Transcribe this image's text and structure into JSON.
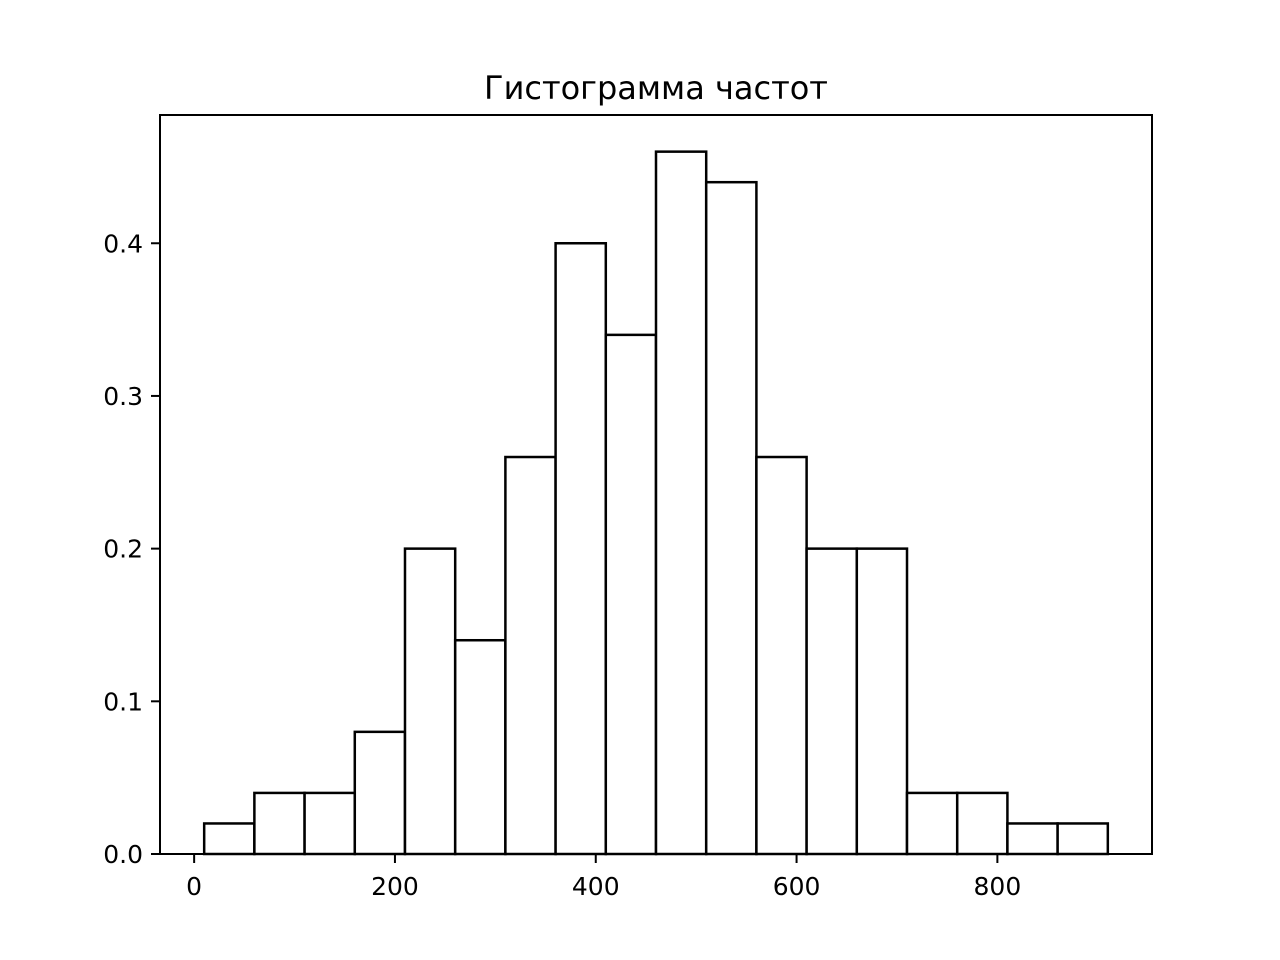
{
  "chart_data": {
    "type": "bar",
    "title": "Гистограмма частот",
    "xlabel": "",
    "ylabel": "",
    "bin_edges": [
      10,
      60,
      110,
      160,
      210,
      260,
      310,
      360,
      410,
      460,
      510,
      560,
      610,
      660,
      710,
      760,
      810,
      860,
      910
    ],
    "values": [
      0.02,
      0.04,
      0.04,
      0.08,
      0.2,
      0.14,
      0.26,
      0.4,
      0.34,
      0.46,
      0.44,
      0.26,
      0.2,
      0.2,
      0.04,
      0.04,
      0.02,
      0.02
    ],
    "xlim": [
      -34,
      954
    ],
    "ylim": [
      0,
      0.484
    ],
    "xticks": [
      {
        "value": 0,
        "label": "0"
      },
      {
        "value": 200,
        "label": "200"
      },
      {
        "value": 400,
        "label": "400"
      },
      {
        "value": 600,
        "label": "600"
      },
      {
        "value": 800,
        "label": "800"
      }
    ],
    "yticks": [
      {
        "value": 0,
        "label": "0.0"
      },
      {
        "value": 0.1,
        "label": "0.1"
      },
      {
        "value": 0.2,
        "label": "0.2"
      },
      {
        "value": 0.3,
        "label": "0.3"
      },
      {
        "value": 0.4,
        "label": "0.4"
      }
    ],
    "grid": false,
    "bar_fill": "#ffffff",
    "bar_edge": "#000000"
  }
}
